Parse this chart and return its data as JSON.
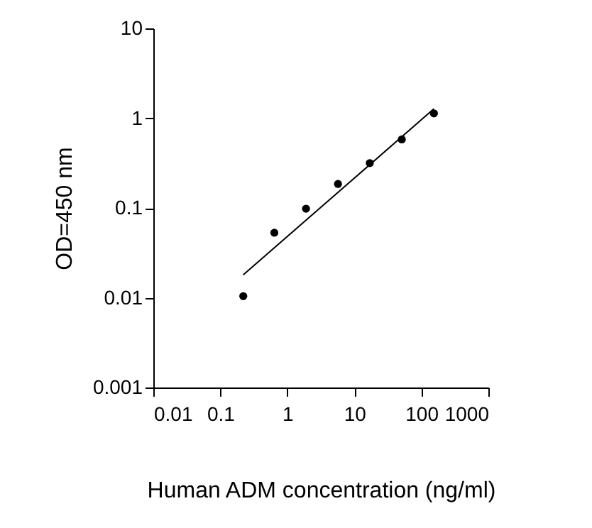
{
  "chart_data": {
    "type": "scatter",
    "xlabel": "Human ADM concentration (ng/ml)",
    "ylabel": "OD=450 nm",
    "log": "xy",
    "grid": false,
    "xlim": [
      0.01,
      1000
    ],
    "xticks": [
      0.01,
      0.1,
      1,
      10,
      100,
      1000
    ],
    "ylim": [
      0.001,
      10
    ],
    "yticks": [
      0.001,
      0.01,
      0.1,
      1,
      10
    ],
    "series": [
      {
        "marker": "circle",
        "color": "#000000",
        "x": [
          0.22,
          0.64,
          1.9,
          5.7,
          17,
          51,
          154
        ],
        "values": [
          0.0104,
          0.053,
          0.098,
          0.185,
          0.316,
          0.58,
          1.13
        ]
      },
      {
        "type": "line",
        "color": "#000000",
        "x": [
          0.22,
          154
        ],
        "values": [
          0.018,
          1.27
        ]
      }
    ]
  }
}
